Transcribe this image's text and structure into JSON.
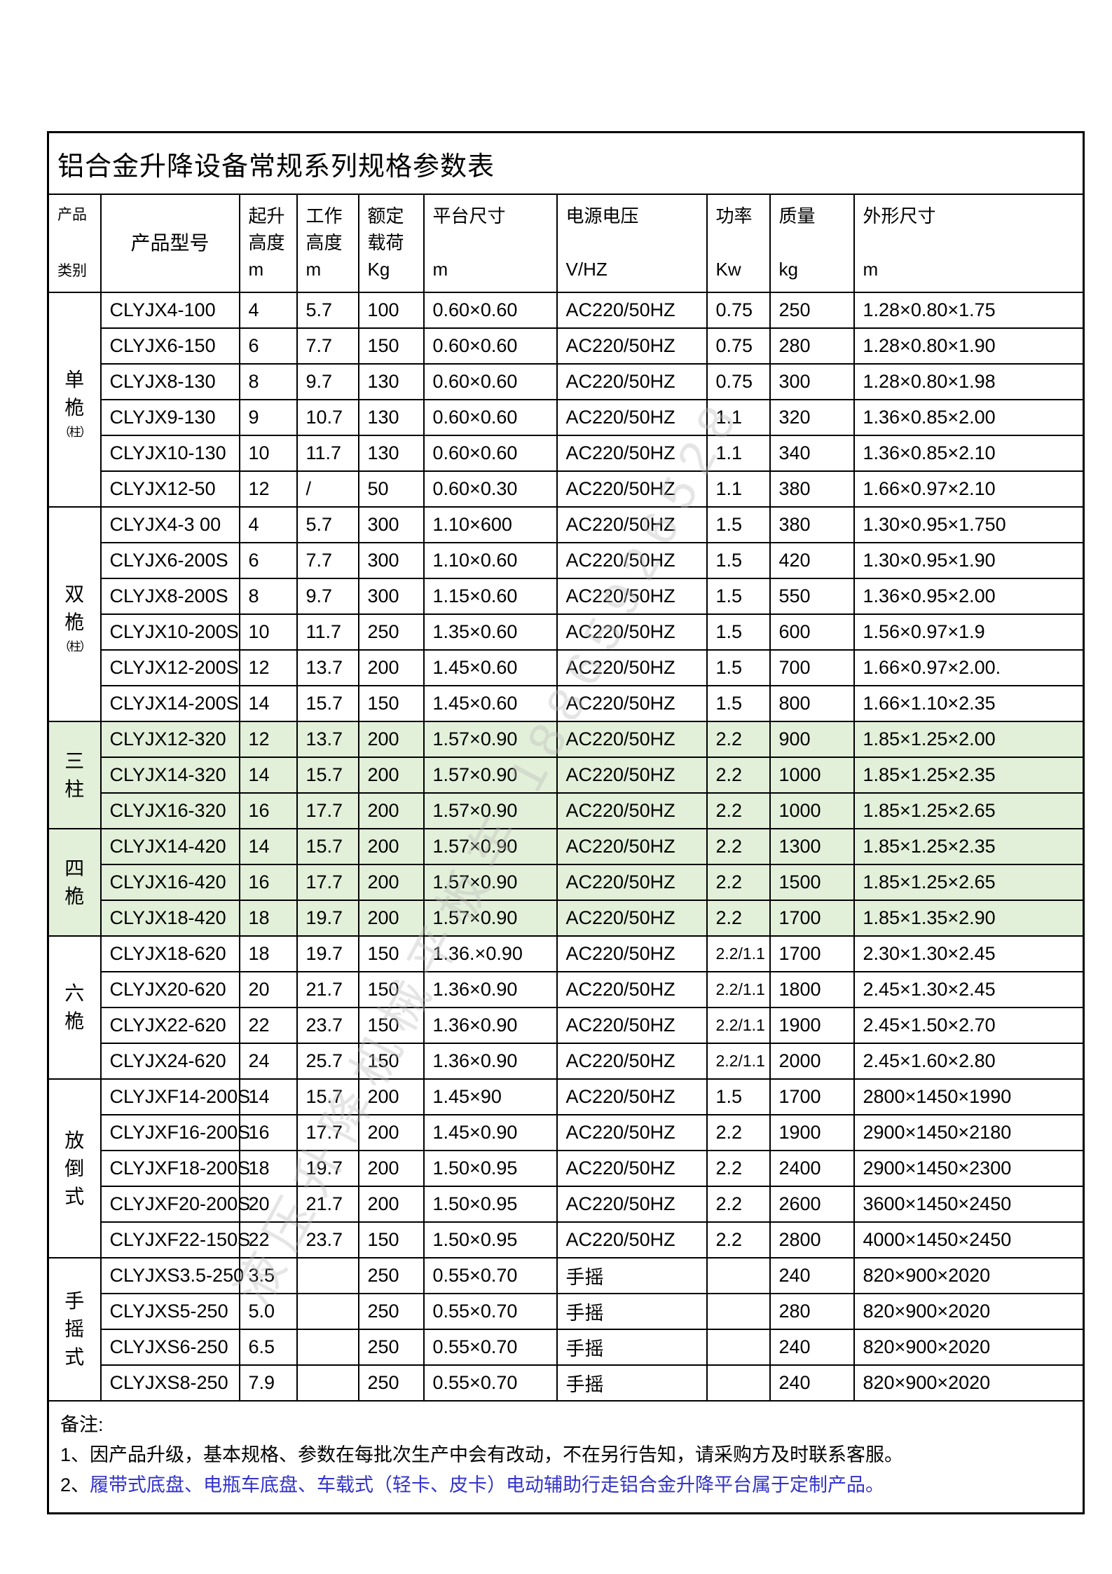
{
  "page": {
    "title": "铝合金升降设备常规系列规格参数表"
  },
  "colors": {
    "highlight_green": "#e2efd9",
    "note_blue": "#3333cc",
    "border_black": "#000000",
    "watermark_gray": "#bcbcbc"
  },
  "table": {
    "columns": [
      {
        "id": "category",
        "header": "产品\n\n类别"
      },
      {
        "id": "model",
        "header": "产品型号"
      },
      {
        "id": "lift",
        "header": "起升\n高度\nm"
      },
      {
        "id": "work",
        "header": "工作\n高度\nm"
      },
      {
        "id": "load",
        "header": "额定\n载荷\nKg"
      },
      {
        "id": "platform",
        "header": "平台尺寸\n\nm"
      },
      {
        "id": "supply",
        "header": "电源电压\n\nV/HZ"
      },
      {
        "id": "power",
        "header": "功率\n\nKw"
      },
      {
        "id": "mass",
        "header": "质量\n\nkg"
      },
      {
        "id": "dims",
        "header": "外形尺寸\n\nm"
      }
    ],
    "groups": [
      {
        "category": [
          "单",
          "桅"
        ],
        "category_small": "（柱）",
        "highlight": false,
        "rows": [
          [
            "CLYJX4-100",
            "4",
            "5.7",
            "100",
            "0.60×0.60",
            "AC220/50HZ",
            "0.75",
            "250",
            "1.28×0.80×1.75"
          ],
          [
            "CLYJX6-150",
            "6",
            "7.7",
            "150",
            "0.60×0.60",
            "AC220/50HZ",
            "0.75",
            "280",
            "1.28×0.80×1.90"
          ],
          [
            "CLYJX8-130",
            "8",
            "9.7",
            "130",
            "0.60×0.60",
            "AC220/50HZ",
            "0.75",
            "300",
            "1.28×0.80×1.98"
          ],
          [
            "CLYJX9-130",
            "9",
            "10.7",
            "130",
            "0.60×0.60",
            "AC220/50HZ",
            "1.1",
            "320",
            "1.36×0.85×2.00"
          ],
          [
            "CLYJX10-130",
            "10",
            "11.7",
            "130",
            "0.60×0.60",
            "AC220/50HZ",
            "1.1",
            "340",
            "1.36×0.85×2.10"
          ],
          [
            "CLYJX12-50",
            "12",
            "/",
            "50",
            "0.60×0.30",
            "AC220/50HZ",
            "1.1",
            "380",
            "1.66×0.97×2.10"
          ]
        ]
      },
      {
        "category": [
          "双",
          "桅"
        ],
        "category_small": "（柱）",
        "highlight": false,
        "rows": [
          [
            "CLYJX4-3 00",
            "4",
            "5.7",
            "300",
            "1.10×600",
            "AC220/50HZ",
            "1.5",
            "380",
            "1.30×0.95×1.750"
          ],
          [
            "CLYJX6-200S",
            "6",
            "7.7",
            "300",
            "1.10×0.60",
            "AC220/50HZ",
            "1.5",
            "420",
            "1.30×0.95×1.90"
          ],
          [
            "CLYJX8-200S",
            "8",
            "9.7",
            "300",
            "1.15×0.60",
            "AC220/50HZ",
            "1.5",
            "550",
            "1.36×0.95×2.00"
          ],
          [
            "CLYJX10-200S",
            "10",
            "11.7",
            "250",
            "1.35×0.60",
            "AC220/50HZ",
            "1.5",
            "600",
            "1.56×0.97×1.9"
          ],
          [
            "CLYJX12-200S",
            "12",
            "13.7",
            "200",
            "1.45×0.60",
            "AC220/50HZ",
            "1.5",
            "700",
            "1.66×0.97×2.00."
          ],
          [
            "CLYJX14-200S",
            "14",
            "15.7",
            "150",
            "1.45×0.60",
            "AC220/50HZ",
            "1.5",
            "800",
            "1.66×1.10×2.35"
          ]
        ]
      },
      {
        "category": [
          "三",
          "柱"
        ],
        "highlight": true,
        "rows": [
          [
            "CLYJX12-320",
            "12",
            "13.7",
            "200",
            "1.57×0.90",
            "AC220/50HZ",
            "2.2",
            "900",
            "1.85×1.25×2.00"
          ],
          [
            "CLYJX14-320",
            "14",
            "15.7",
            "200",
            "1.57×0.90",
            "AC220/50HZ",
            "2.2",
            "1000",
            "1.85×1.25×2.35"
          ],
          [
            "CLYJX16-320",
            "16",
            "17.7",
            "200",
            "1.57×0.90",
            "AC220/50HZ",
            "2.2",
            "1000",
            "1.85×1.25×2.65"
          ]
        ]
      },
      {
        "category": [
          "四",
          "桅"
        ],
        "highlight": true,
        "rows": [
          [
            "CLYJX14-420",
            "14",
            "15.7",
            "200",
            "1.57×0.90",
            "AC220/50HZ",
            "2.2",
            "1300",
            "1.85×1.25×2.35"
          ],
          [
            "CLYJX16-420",
            "16",
            "17.7",
            "200",
            "1.57×0.90",
            "AC220/50HZ",
            "2.2",
            "1500",
            "1.85×1.25×2.65"
          ],
          [
            "CLYJX18-420",
            "18",
            "19.7",
            "200",
            "1.57×0.90",
            "AC220/50HZ",
            "2.2",
            "1700",
            "1.85×1.35×2.90"
          ]
        ]
      },
      {
        "category": [
          "六",
          "桅"
        ],
        "highlight": false,
        "rows": [
          [
            "CLYJX18-620",
            "18",
            "19.7",
            "150",
            "1.36.×0.90",
            "AC220/50HZ",
            "2.2/1.1",
            "1700",
            "2.30×1.30×2.45"
          ],
          [
            "CLYJX20-620",
            "20",
            "21.7",
            "150",
            "1.36×0.90",
            "AC220/50HZ",
            "2.2/1.1",
            "1800",
            "2.45×1.30×2.45"
          ],
          [
            "CLYJX22-620",
            "22",
            "23.7",
            "150",
            "1.36×0.90",
            "AC220/50HZ",
            "2.2/1.1",
            "1900",
            "2.45×1.50×2.70"
          ],
          [
            "CLYJX24-620",
            "24",
            "25.7",
            "150",
            "1.36×0.90",
            "AC220/50HZ",
            "2.2/1.1",
            "2000",
            "2.45×1.60×2.80"
          ]
        ]
      },
      {
        "category": [
          "放",
          "倒",
          "式"
        ],
        "highlight": false,
        "rows": [
          [
            "CLYJXF14-200S",
            "14",
            "15.7",
            "200",
            "1.45×90",
            "AC220/50HZ",
            "1.5",
            "1700",
            "2800×1450×1990"
          ],
          [
            "CLYJXF16-200S",
            "16",
            "17.7",
            "200",
            "1.45×0.90",
            "AC220/50HZ",
            "2.2",
            "1900",
            "2900×1450×2180"
          ],
          [
            "CLYJXF18-200S",
            "18",
            "19.7",
            "200",
            "1.50×0.95",
            "AC220/50HZ",
            "2.2",
            "2400",
            "2900×1450×2300"
          ],
          [
            "CLYJXF20-200S",
            "20",
            "21.7",
            "200",
            "1.50×0.95",
            "AC220/50HZ",
            "2.2",
            "2600",
            "3600×1450×2450"
          ],
          [
            "CLYJXF22-150S",
            "22",
            "23.7",
            "150",
            "1.50×0.95",
            "AC220/50HZ",
            "2.2",
            "2800",
            "4000×1450×2450"
          ]
        ]
      },
      {
        "category": [
          "手",
          "摇",
          "式"
        ],
        "highlight": false,
        "rows": [
          [
            "CLYJXS3.5-250",
            "3.5",
            "",
            "250",
            "0.55×0.70",
            "手摇",
            "",
            "240",
            "820×900×2020"
          ],
          [
            "CLYJXS5-250",
            "5.0",
            "",
            "250",
            "0.55×0.70",
            "手摇",
            "",
            "280",
            "820×900×2020"
          ],
          [
            "CLYJXS6-250",
            "6.5",
            "",
            "250",
            "0.55×0.70",
            "手摇",
            "",
            "240",
            "820×900×2020"
          ],
          [
            "CLYJXS8-250",
            "7.9",
            "",
            "250",
            "0.55×0.70",
            "手摇",
            "",
            "240",
            "820×900×2020"
          ]
        ]
      }
    ]
  },
  "notes": {
    "label": "备注:",
    "line1_num": "1、",
    "line1_text": "因产品升级，基本规格、参数在每批次生产中会有改动，不在另行告知，请采购方及时联系客服。",
    "line2_num": "2、",
    "line2_text": "履带式底盘、电瓶车底盘、车载式（轻卡、皮卡）电动辅助行走铝合金升降平台属于定制产品。"
  },
  "watermark": {
    "text": "液压升降机械平板车 18865926528"
  }
}
